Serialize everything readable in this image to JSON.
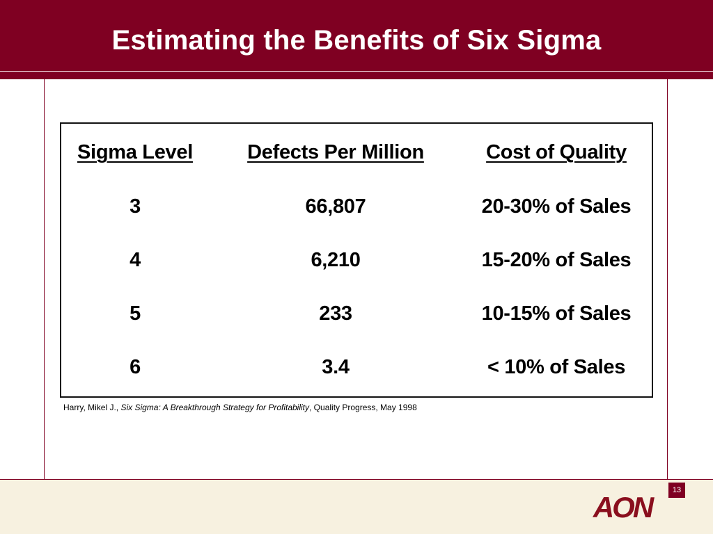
{
  "slide": {
    "title": "Estimating the Benefits of Six Sigma",
    "page_number": "13",
    "logo_text": "AON"
  },
  "table": {
    "headers": [
      "Sigma Level",
      "Defects Per Million",
      "Cost of Quality"
    ],
    "rows": [
      [
        "3",
        "66,807",
        "20-30% of Sales"
      ],
      [
        "4",
        "6,210",
        "15-20% of Sales"
      ],
      [
        "5",
        "233",
        "10-15% of Sales"
      ],
      [
        "6",
        "3.4",
        "< 10% of Sales"
      ]
    ]
  },
  "citation": {
    "author": "Harry, Mikel J., ",
    "title": "Six Sigma: A Breakthrough Strategy for Profitability",
    "source": ", Quality Progress, May 1998"
  },
  "colors": {
    "brand_maroon": "#7f0022",
    "footer_cream": "#f7f1e0"
  }
}
